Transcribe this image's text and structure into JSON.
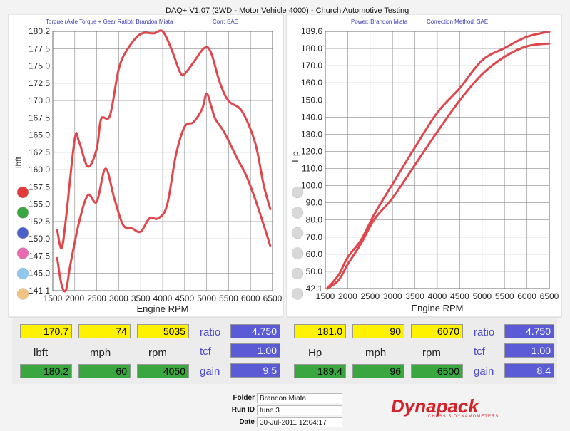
{
  "header": {
    "title": "DAQ+ V1.07 (2WD - Motor Vehicle 4000) - Church Automotive Testing"
  },
  "chart_data": [
    {
      "type": "line",
      "subtitle_left": "Torque (Axle Torque + Gear Ratio): Brandon Miata",
      "subtitle_right": "Corr: SAE",
      "xlabel": "Engine RPM",
      "ylabel": "lbft",
      "xlim": [
        1500,
        6500
      ],
      "ylim": [
        141.1,
        180.2
      ],
      "x_ticks": [
        "1500",
        "2000",
        "2500",
        "3000",
        "3500",
        "4000",
        "4500",
        "5000",
        "5500",
        "6000",
        "6500"
      ],
      "y_ticks": [
        "180.2",
        "177.5",
        "175.0",
        "172.5",
        "170.0",
        "167.5",
        "165.0",
        "162.5",
        "160.0",
        "157.5",
        "155.0",
        "152.5",
        "150.0",
        "147.5",
        "145.0",
        "141.1"
      ],
      "grid": true,
      "series": [
        {
          "x": [
            1600,
            1700,
            1800,
            2000,
            2100,
            2300,
            2500,
            2600,
            2800,
            3000,
            3200,
            3500,
            3800,
            4000,
            4200,
            4400,
            4500,
            4700,
            4950,
            5100,
            5300,
            5500,
            5800,
            6100,
            6300,
            6450
          ],
          "values": [
            150.2,
            147.5,
            152.0,
            164.0,
            163.5,
            159.8,
            162.5,
            167.0,
            167.5,
            174.5,
            177.5,
            179.8,
            179.9,
            180.2,
            177.5,
            174.0,
            173.8,
            175.5,
            177.7,
            177.0,
            172.5,
            169.7,
            168.2,
            163.5,
            157.0,
            153.4
          ]
        },
        {
          "x": [
            1600,
            1700,
            1800,
            1900,
            2100,
            2300,
            2500,
            2700,
            2900,
            3100,
            3300,
            3500,
            3700,
            3900,
            4100,
            4300,
            4500,
            4700,
            4900,
            5000,
            5100,
            5200,
            5400,
            5700,
            5900,
            6100,
            6300,
            6450
          ],
          "values": [
            146.0,
            142.0,
            141.2,
            145.0,
            151.5,
            155.5,
            154.5,
            159.5,
            155.0,
            151.0,
            150.5,
            150.0,
            152.0,
            152.0,
            154.0,
            161.5,
            165.8,
            166.5,
            168.5,
            170.8,
            169.0,
            167.0,
            165.0,
            161.0,
            158.5,
            155.0,
            151.0,
            147.8
          ]
        }
      ],
      "legend_dot_colors": [
        "#e23a3a",
        "#3aa640",
        "#4b5fc8",
        "#e86ab0",
        "#8fc8ee",
        "#f4c280"
      ]
    },
    {
      "type": "line",
      "subtitle_left": "Power: Brandon Miata",
      "subtitle_right": "Correction Method: SAE",
      "xlabel": "Engine RPM",
      "ylabel": "Hp",
      "xlim": [
        1500,
        6500
      ],
      "ylim": [
        42.1,
        189.6
      ],
      "x_ticks": [
        "1500",
        "2000",
        "2500",
        "3000",
        "3500",
        "4000",
        "4500",
        "5000",
        "5500",
        "6000",
        "6500"
      ],
      "y_ticks": [
        "189.6",
        "180.0",
        "170.0",
        "160.0",
        "150.0",
        "140.0",
        "130.0",
        "120.0",
        "110.0",
        "100.0",
        "90.0",
        "80.0",
        "70.0",
        "60.0",
        "50.0",
        "42.1"
      ],
      "grid": true,
      "series": [
        {
          "x": [
            1550,
            1800,
            2000,
            2300,
            2600,
            3000,
            3500,
            4000,
            4500,
            5000,
            5500,
            6000,
            6500
          ],
          "values": [
            42.5,
            50.0,
            60.0,
            70.0,
            85.0,
            102.0,
            123.0,
            143.0,
            157.0,
            173.0,
            180.0,
            186.5,
            189.4
          ]
        },
        {
          "x": [
            1550,
            1800,
            2000,
            2300,
            2600,
            3000,
            3500,
            4000,
            4500,
            5000,
            5500,
            6000,
            6500
          ],
          "values": [
            42.1,
            47.0,
            56.0,
            68.0,
            82.0,
            94.0,
            113.0,
            132.0,
            150.0,
            165.0,
            175.0,
            181.0,
            182.6
          ]
        }
      ],
      "legend_dot_colors": [
        "#d8d8d8",
        "#d8d8d8",
        "#d8d8d8",
        "#d8d8d8",
        "#d8d8d8",
        "#d8d8d8"
      ]
    }
  ],
  "readouts": {
    "left": {
      "current": [
        "170.7",
        "74",
        "5035"
      ],
      "labels": [
        "lbft",
        "mph",
        "rpm"
      ],
      "max": [
        "180.2",
        "60",
        "4050"
      ],
      "side_labels": [
        "ratio",
        "tcf",
        "gain"
      ],
      "side_values": [
        "4.750",
        "1.00",
        "9.5"
      ]
    },
    "right": {
      "current": [
        "181.0",
        "90",
        "6070"
      ],
      "labels": [
        "Hp",
        "mph",
        "rpm"
      ],
      "max": [
        "189.4",
        "96",
        "6500"
      ],
      "side_labels": [
        "ratio",
        "tcf",
        "gain"
      ],
      "side_values": [
        "4.750",
        "1.00",
        "8.4"
      ]
    }
  },
  "info": {
    "folder_label": "Folder",
    "folder": "Brandon Miata",
    "runid_label": "Run ID",
    "runid": "tune 3",
    "date_label": "Date",
    "date": "30-Jul-2011 12:04:17"
  },
  "brand": {
    "name": "Dynapack",
    "tagline": "CHASSIS DYNAMOMETERS",
    "color": "#d62128"
  },
  "colors": {
    "curve": "#e0474c",
    "grid": "#8a8a8a",
    "plot_bg": "#ffffff"
  }
}
